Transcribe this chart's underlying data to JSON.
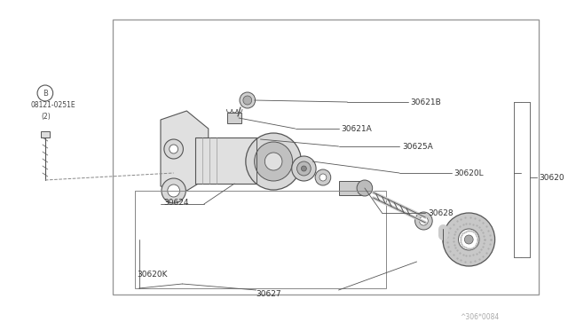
{
  "bg_color": "#ffffff",
  "border_color": "#aaaaaa",
  "dc": "#555555",
  "label_fs": 6.5,
  "code_text": "^306*0084",
  "bolt_label1": "B 08121-0251E",
  "bolt_label2": "(2)"
}
